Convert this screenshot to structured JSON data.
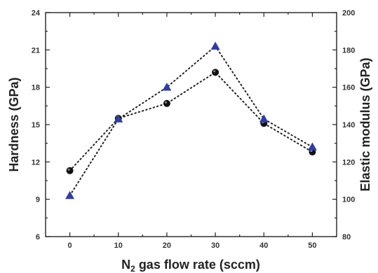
{
  "chart_data": {
    "type": "scatter",
    "xlabel": "N",
    "xlabel_sub": "2",
    "xlabel_rest": " gas flow rate (sccm)",
    "ylabel_left": "Hardness (GPa)",
    "ylabel_right": "Elastic modulus (GPa)",
    "xlim": [
      -5,
      55
    ],
    "ylim_left": [
      6,
      24
    ],
    "ylim_right": [
      80,
      200
    ],
    "x_ticks": [
      "0",
      "10",
      "20",
      "30",
      "40",
      "50"
    ],
    "y_left_ticks": [
      "6",
      "9",
      "12",
      "15",
      "18",
      "21",
      "24"
    ],
    "y_right_ticks": [
      "80",
      "100",
      "120",
      "140",
      "160",
      "180",
      "200"
    ],
    "series": [
      {
        "axis": "left",
        "marker": "circle",
        "color": "#111111",
        "x": [
          0,
          10,
          20,
          30,
          40,
          50
        ],
        "values": [
          11.3,
          15.5,
          16.7,
          19.2,
          15.1,
          12.8
        ]
      },
      {
        "axis": "right",
        "marker": "triangle",
        "color": "#2f3da8",
        "x": [
          0,
          10,
          20,
          30,
          40,
          50
        ],
        "values": [
          102,
          143,
          160,
          182,
          143,
          128
        ]
      }
    ]
  }
}
